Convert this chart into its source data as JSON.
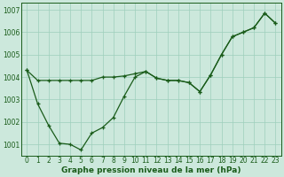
{
  "title": "Graphe pression niveau de la mer (hPa)",
  "bg_color": "#cce8dc",
  "line_color": "#1a5c1a",
  "grid_color": "#9ecfbb",
  "x_ticks": [
    0,
    1,
    2,
    3,
    4,
    5,
    6,
    7,
    8,
    9,
    10,
    11,
    12,
    13,
    14,
    15,
    16,
    17,
    18,
    19,
    20,
    21,
    22,
    23
  ],
  "ylim": [
    1000.5,
    1007.3
  ],
  "yticks": [
    1001,
    1002,
    1003,
    1004,
    1005,
    1006,
    1007
  ],
  "series1_x": [
    0,
    1,
    2,
    3,
    4,
    5,
    6,
    7,
    8,
    9,
    10,
    11,
    12,
    13,
    14,
    15,
    16,
    17,
    18,
    19,
    20,
    21,
    22,
    23
  ],
  "series1_y": [
    1004.3,
    1003.85,
    1003.85,
    1003.85,
    1003.85,
    1003.85,
    1003.85,
    1004.0,
    1004.0,
    1004.05,
    1004.15,
    1004.25,
    1003.95,
    1003.85,
    1003.85,
    1003.75,
    1003.35,
    1004.1,
    1005.0,
    1005.8,
    1006.0,
    1006.2,
    1006.85,
    1006.4
  ],
  "series2_x": [
    0,
    1,
    2,
    3,
    4,
    5,
    6,
    7,
    8,
    9,
    10,
    11,
    12,
    13,
    14,
    15,
    16,
    17,
    18,
    19,
    20,
    21,
    22,
    23
  ],
  "series2_y": [
    1004.3,
    1002.8,
    1001.85,
    1001.05,
    1001.0,
    1000.75,
    1001.5,
    1001.75,
    1002.2,
    1003.15,
    1004.0,
    1004.25,
    1003.95,
    1003.85,
    1003.85,
    1003.75,
    1003.35,
    1004.1,
    1005.0,
    1005.8,
    1006.0,
    1006.2,
    1006.85,
    1006.4
  ],
  "title_fontsize": 6.5,
  "tick_fontsize": 5.5,
  "xlabel_pad": 1
}
